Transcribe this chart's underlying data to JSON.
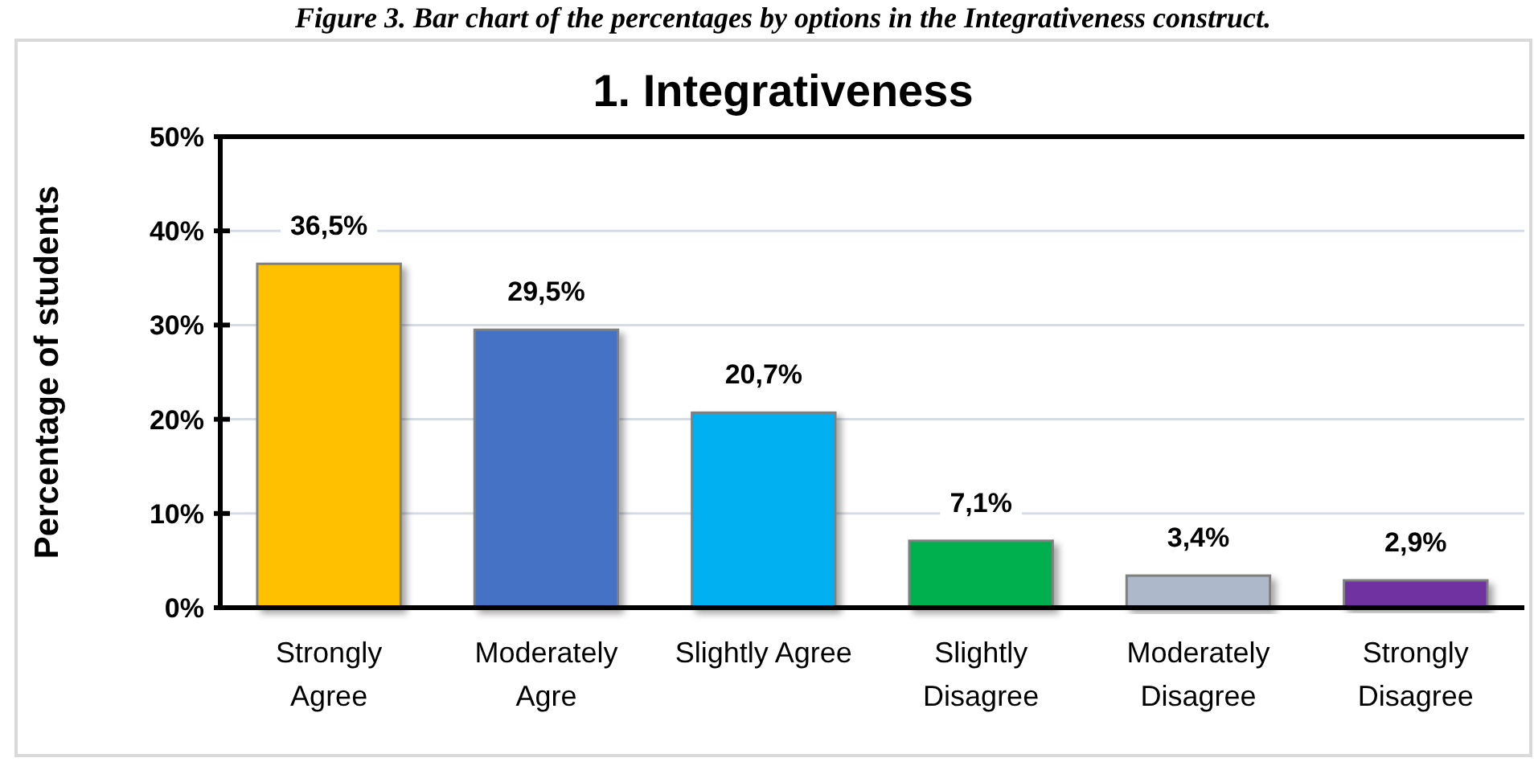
{
  "chart_data": {
    "type": "bar",
    "title": "1. Integrativeness",
    "annotations": [
      "Figure 3. Bar chart of the percentages by options in the Integrativeness construct."
    ],
    "ylabel": "Percentage of students",
    "categories": [
      "Strongly Agree",
      "Moderately Agre",
      "Slightly Agree",
      "Slightly Disagree",
      "Moderately Disagree",
      "Strongly Disagree"
    ],
    "values": [
      36.5,
      29.5,
      20.7,
      7.1,
      3.4,
      2.9
    ],
    "colors": [
      "#ffc000",
      "#4472c4",
      "#00b0f0",
      "#00b050",
      "#adb9ca",
      "#7030a0"
    ],
    "value_labels": [
      "36,5%",
      "29,5%",
      "20,7%",
      "7,1%",
      "3,4%",
      "2,9%"
    ],
    "ylim": [
      0,
      50
    ],
    "yticks": [
      {
        "value": 0,
        "label": "0%"
      },
      {
        "value": 10,
        "label": "10%"
      },
      {
        "value": 20,
        "label": "20%"
      },
      {
        "value": 30,
        "label": "30%"
      },
      {
        "value": 40,
        "label": "40%"
      },
      {
        "value": 50,
        "label": "50%"
      }
    ],
    "grid": "y"
  }
}
